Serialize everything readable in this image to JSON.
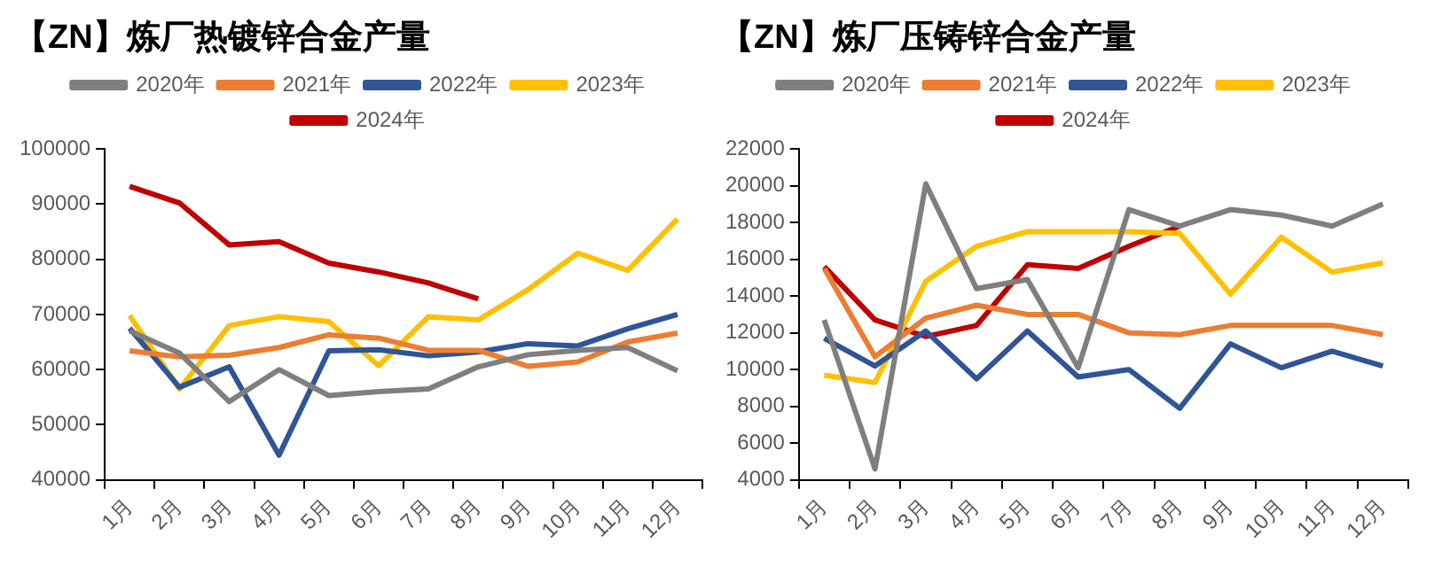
{
  "chart_data": [
    {
      "type": "line",
      "title": "【ZN】炼厂热镀锌合金产量",
      "categories": [
        "1月",
        "2月",
        "3月",
        "4月",
        "5月",
        "6月",
        "7月",
        "8月",
        "9月",
        "10月",
        "11月",
        "12月"
      ],
      "ylim": [
        40000,
        100000
      ],
      "yticks": [
        40000,
        50000,
        60000,
        70000,
        80000,
        90000,
        100000
      ],
      "grid": false,
      "legend": "top",
      "marker": "none",
      "line_style": "solid",
      "series": [
        {
          "name": "2020年",
          "color": "#7f7f7f",
          "values": [
            67000,
            63000,
            54200,
            60000,
            55300,
            56000,
            56500,
            60500,
            62700,
            63500,
            64000,
            59800
          ]
        },
        {
          "name": "2021年",
          "color": "#ed7d31",
          "values": [
            63400,
            62300,
            62600,
            64000,
            66300,
            65700,
            63500,
            63500,
            60600,
            61400,
            65000,
            66600
          ]
        },
        {
          "name": "2022年",
          "color": "#2f5597",
          "values": [
            67500,
            56800,
            60500,
            44500,
            63400,
            63600,
            62500,
            63200,
            64700,
            64300,
            67400,
            70000
          ]
        },
        {
          "name": "2023年",
          "color": "#ffc000",
          "values": [
            69800,
            56500,
            68000,
            69600,
            68700,
            60700,
            69600,
            69000,
            74500,
            81100,
            78000,
            87300
          ]
        },
        {
          "name": "2024年",
          "color": "#c00000",
          "values": [
            93200,
            90200,
            82600,
            83200,
            79300,
            77700,
            75700,
            72800,
            null,
            null,
            null,
            null
          ]
        }
      ]
    },
    {
      "type": "line",
      "title": "【ZN】炼厂压铸锌合金产量",
      "categories": [
        "1月",
        "2月",
        "3月",
        "4月",
        "5月",
        "6月",
        "7月",
        "8月",
        "9月",
        "10月",
        "11月",
        "12月"
      ],
      "ylim": [
        4000,
        22000
      ],
      "yticks": [
        4000,
        6000,
        8000,
        10000,
        12000,
        14000,
        16000,
        18000,
        20000,
        22000
      ],
      "grid": false,
      "legend": "top",
      "marker": "none",
      "line_style": "solid",
      "series": [
        {
          "name": "2020年",
          "color": "#7f7f7f",
          "values": [
            12700,
            4600,
            20100,
            14400,
            14900,
            10100,
            18700,
            17800,
            18700,
            18400,
            17800,
            19000
          ]
        },
        {
          "name": "2021年",
          "color": "#ed7d31",
          "values": [
            15500,
            10700,
            12800,
            13500,
            13000,
            13000,
            12000,
            11900,
            12400,
            12400,
            12400,
            11900
          ]
        },
        {
          "name": "2022年",
          "color": "#2f5597",
          "values": [
            11700,
            10200,
            12100,
            9500,
            12100,
            9600,
            10000,
            7900,
            11400,
            10100,
            11000,
            10200
          ]
        },
        {
          "name": "2023年",
          "color": "#ffc000",
          "values": [
            9700,
            9300,
            14800,
            16700,
            17500,
            17500,
            17500,
            17400,
            14100,
            17200,
            15300,
            15800
          ]
        },
        {
          "name": "2024年",
          "color": "#c00000",
          "values": [
            15600,
            12700,
            11800,
            12400,
            15700,
            15500,
            16700,
            17800,
            null,
            null,
            null,
            null
          ]
        }
      ]
    }
  ]
}
